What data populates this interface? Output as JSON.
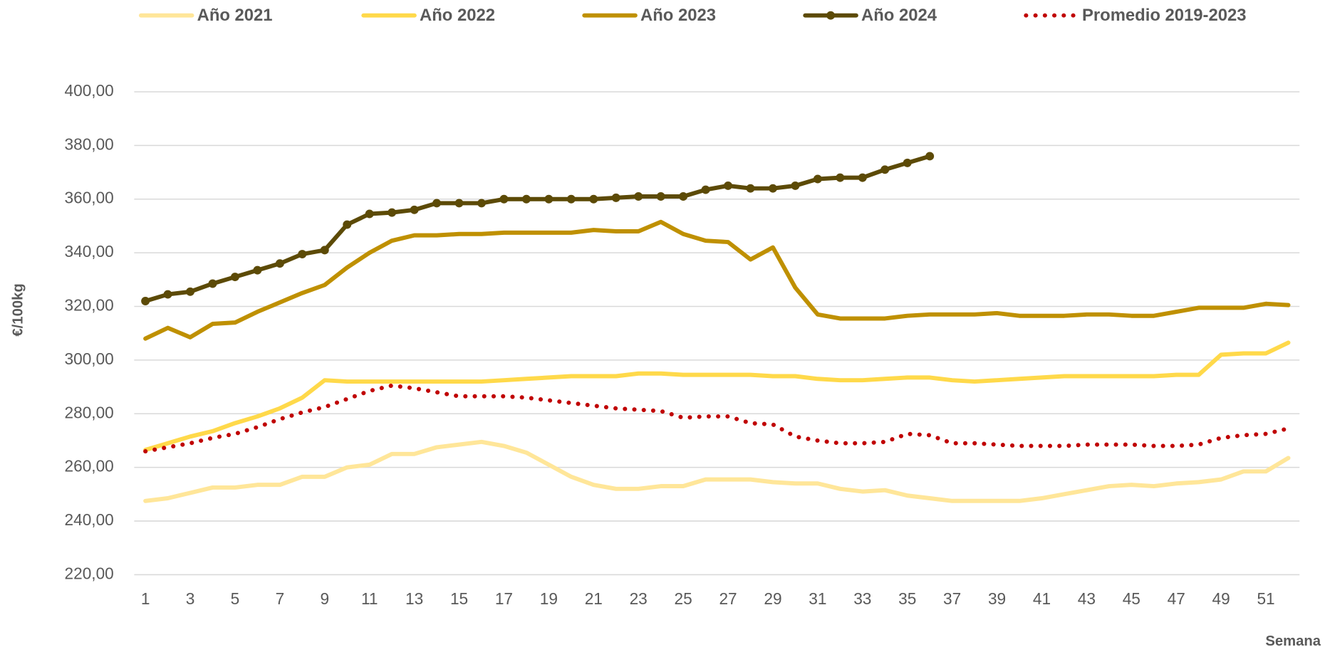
{
  "chart_data": {
    "type": "line",
    "y_label": "€/100kg",
    "x_label": "Semana",
    "categories": [
      1,
      null,
      3,
      null,
      5,
      null,
      7,
      null,
      9,
      null,
      11,
      null,
      13,
      null,
      15,
      null,
      17,
      null,
      19,
      null,
      21,
      null,
      23,
      null,
      25,
      null,
      27,
      null,
      29,
      null,
      31,
      null,
      33,
      null,
      35,
      null,
      37,
      null,
      39,
      null,
      41,
      null,
      43,
      null,
      45,
      null,
      47,
      null,
      49,
      null,
      51,
      null
    ],
    "ylim": [
      220,
      400
    ],
    "yticks": [
      {
        "value": 220,
        "label": "220,00"
      },
      {
        "value": 240,
        "label": "240,00"
      },
      {
        "value": 260,
        "label": "260,00"
      },
      {
        "value": 280,
        "label": "280,00"
      },
      {
        "value": 300,
        "label": "300,00"
      },
      {
        "value": 320,
        "label": "320,00"
      },
      {
        "value": 340,
        "label": "340,00"
      },
      {
        "value": 360,
        "label": "360,00"
      },
      {
        "value": 380,
        "label": "380,00"
      },
      {
        "value": 400,
        "label": "400,00"
      }
    ],
    "grid": true,
    "legend": "top",
    "series": [
      {
        "name": "Año 2021",
        "color": "#ffe699",
        "style": "solid",
        "markers": false,
        "values": [
          247.5,
          248.5,
          250.5,
          252.5,
          252.5,
          253.5,
          253.5,
          256.5,
          256.5,
          260,
          261,
          265,
          265,
          267.5,
          268.5,
          269.5,
          268,
          265.5,
          261,
          256.5,
          253.5,
          252,
          252,
          253,
          253,
          255.5,
          255.5,
          255.5,
          254.5,
          254,
          254,
          252,
          251,
          251.5,
          249.5,
          248.5,
          247.5,
          247.5,
          247.5,
          247.5,
          248.5,
          250,
          251.5,
          253,
          253.5,
          253,
          254,
          254.5,
          255.5,
          258.5,
          258.5,
          263.5
        ]
      },
      {
        "name": "Año 2022",
        "color": "#ffd94a",
        "style": "solid",
        "markers": false,
        "values": [
          266.5,
          269,
          271.5,
          273.5,
          276.5,
          279,
          282,
          286,
          292.5,
          292,
          292,
          292,
          292,
          292,
          292,
          292,
          292.5,
          293,
          293.5,
          294,
          294,
          294,
          295,
          295,
          294.5,
          294.5,
          294.5,
          294.5,
          294,
          294,
          293,
          292.5,
          292.5,
          293,
          293.5,
          293.5,
          292.5,
          292,
          292.5,
          293,
          293.5,
          294,
          294,
          294,
          294,
          294,
          294.5,
          294.5,
          302,
          302.5,
          302.5,
          306.5
        ]
      },
      {
        "name": "Año 2023",
        "color": "#bf9000",
        "style": "solid",
        "markers": false,
        "values": [
          308,
          312,
          308.5,
          313.5,
          314,
          318,
          321.5,
          325,
          328,
          334.5,
          340,
          344.5,
          346.5,
          346.5,
          347,
          347,
          347.5,
          347.5,
          347.5,
          347.5,
          348.5,
          348,
          348,
          351.5,
          347,
          344.5,
          344,
          337.5,
          342,
          327,
          317,
          315.5,
          315.5,
          315.5,
          316.5,
          317,
          317,
          317,
          317.5,
          316.5,
          316.5,
          316.5,
          317,
          317,
          316.5,
          316.5,
          318,
          319.5,
          319.5,
          319.5,
          321,
          320.5
        ]
      },
      {
        "name": "Año 2024",
        "color": "#5c4a06",
        "style": "solid",
        "markers": true,
        "values": [
          322,
          324.5,
          325.5,
          328.5,
          331,
          333.5,
          336,
          339.5,
          341,
          350.5,
          354.5,
          355,
          356,
          358.5,
          358.5,
          358.5,
          360,
          360,
          360,
          360,
          360,
          360.5,
          361,
          361,
          361,
          363.5,
          365,
          364,
          364,
          365,
          367.5,
          368,
          368,
          371,
          373.5,
          376,
          null,
          null,
          null,
          null,
          null,
          null,
          null,
          null,
          null,
          null,
          null,
          null,
          null,
          null,
          null,
          null
        ]
      },
      {
        "name": "Promedio 2019-2023",
        "color": "#c00000",
        "style": "dotted",
        "markers": false,
        "values": [
          266,
          267.5,
          269,
          271,
          272.5,
          275,
          278,
          280.5,
          282.5,
          285.5,
          288.5,
          290.5,
          289.5,
          288,
          286.5,
          286.5,
          286.5,
          286,
          285,
          284,
          283,
          282,
          281.5,
          281,
          278.5,
          279,
          279,
          276.5,
          276,
          271.5,
          270,
          269,
          269,
          269.5,
          272.5,
          272,
          269,
          269,
          268.5,
          268,
          268,
          268,
          268.5,
          268.5,
          268.5,
          268,
          268,
          268.5,
          271,
          272,
          272.5,
          274.5
        ]
      }
    ]
  }
}
